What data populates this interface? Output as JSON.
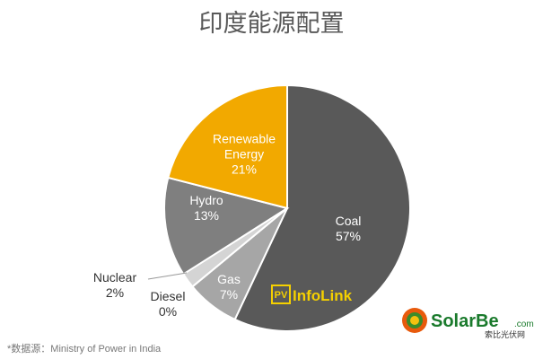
{
  "chart_data": {
    "type": "pie",
    "title": "印度能源配置",
    "categories": [
      "Coal",
      "Gas",
      "Diesel",
      "Nuclear",
      "Hydro",
      "Renewable Energy"
    ],
    "values": [
      57,
      7,
      0,
      2,
      13,
      21
    ],
    "value_labels": [
      "57%",
      "7%",
      "0%",
      "2%",
      "13%",
      "21%"
    ],
    "colors": [
      "#595959",
      "#a6a6a6",
      "#c8c8c8",
      "#d4d4d4",
      "#7f7f7f",
      "#f2a900"
    ],
    "source": "*数据源：Ministry of Power in India"
  },
  "watermarks": {
    "infolink_badge": "PV",
    "infolink": "InfoLink",
    "solarbe": "SolarBe",
    "solarbe_domain": ".com",
    "solarbe_cn": "索比光伏网"
  }
}
